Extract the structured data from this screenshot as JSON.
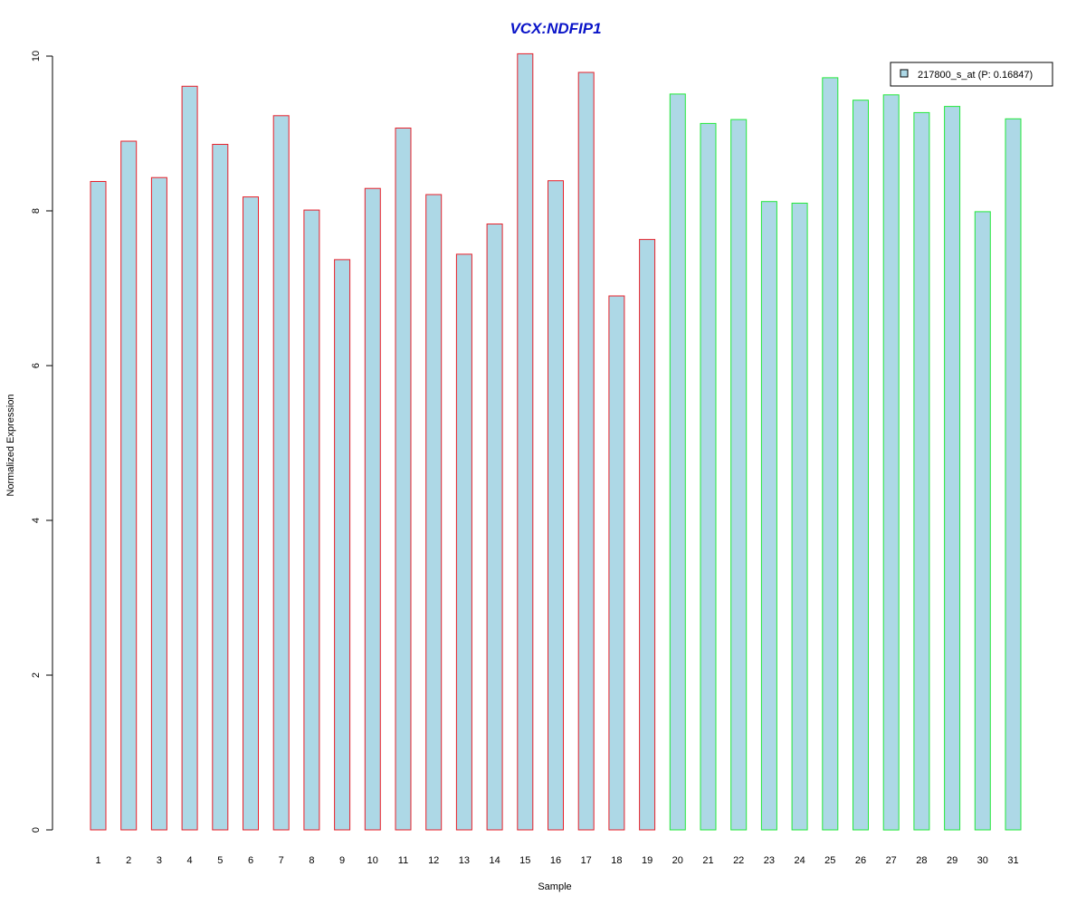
{
  "chart_data": {
    "type": "bar",
    "title": "VCX:NDFIP1",
    "xlabel": "Sample",
    "ylabel": "Normalized Expression",
    "ylim": [
      0,
      10
    ],
    "yticks": [
      "0",
      "2",
      "4",
      "6",
      "8",
      "10"
    ],
    "categories": [
      "1",
      "2",
      "3",
      "4",
      "5",
      "6",
      "7",
      "8",
      "9",
      "10",
      "11",
      "12",
      "13",
      "14",
      "15",
      "16",
      "17",
      "18",
      "19",
      "20",
      "21",
      "22",
      "23",
      "24",
      "25",
      "26",
      "27",
      "28",
      "29",
      "30",
      "31"
    ],
    "series": [
      {
        "name": "217800_s_at (P: 0.16847)",
        "values": [
          8.38,
          8.9,
          8.43,
          9.61,
          8.86,
          8.18,
          9.23,
          8.01,
          7.37,
          8.29,
          9.07,
          8.21,
          7.44,
          7.83,
          10.03,
          8.39,
          9.79,
          6.9,
          7.63,
          9.51,
          9.13,
          9.18,
          8.12,
          8.1,
          9.72,
          9.43,
          9.5,
          9.27,
          9.35,
          7.99,
          9.19
        ]
      }
    ],
    "groups": [
      {
        "from": 1,
        "to": 19,
        "border_color": "#e8202a"
      },
      {
        "from": 20,
        "to": 31,
        "border_color": "#22e83a"
      }
    ],
    "grid": false,
    "legend_position": "top-right"
  },
  "colors": {
    "title": "#0a14c8",
    "bar_fill": "#add8e6",
    "group1_border": "#e8202a",
    "group2_border": "#22e83a",
    "axis": "#000000"
  }
}
